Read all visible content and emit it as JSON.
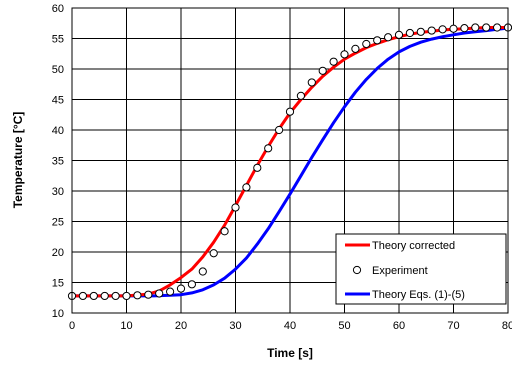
{
  "chart_data": {
    "type": "line",
    "xlabel": "Time [s]",
    "ylabel": "Temperature [°C]",
    "xlim": [
      0,
      80
    ],
    "ylim": [
      10,
      60
    ],
    "x_ticks": [
      0,
      10,
      20,
      30,
      40,
      50,
      60,
      70,
      80
    ],
    "y_ticks": [
      10,
      15,
      20,
      25,
      30,
      35,
      40,
      45,
      50,
      55,
      60
    ],
    "grid": true,
    "legend_position": "bottom-right",
    "series": [
      {
        "name": "Theory corrected",
        "kind": "line",
        "color": "#ff0000",
        "x": [
          0,
          10,
          14,
          16,
          18,
          20,
          22,
          24,
          26,
          28,
          30,
          32,
          34,
          36,
          38,
          40,
          42,
          44,
          46,
          48,
          50,
          52,
          54,
          56,
          58,
          60,
          62,
          64,
          66,
          68,
          70,
          72,
          74,
          76,
          78,
          80
        ],
        "y": [
          12.8,
          12.8,
          13.1,
          13.6,
          14.6,
          15.8,
          17.2,
          19.2,
          21.6,
          24.4,
          27.6,
          30.9,
          34.2,
          37.3,
          40.2,
          42.8,
          45.0,
          47.0,
          48.8,
          50.3,
          51.6,
          52.6,
          53.5,
          54.2,
          54.8,
          55.3,
          55.7,
          56.0,
          56.2,
          56.4,
          56.5,
          56.6,
          56.7,
          56.8,
          56.8,
          56.8
        ]
      },
      {
        "name": "Experiment",
        "kind": "scatter",
        "color": "#000000",
        "x": [
          0,
          2,
          4,
          6,
          8,
          10,
          12,
          14,
          16,
          18,
          20,
          22,
          24,
          26,
          28,
          30,
          32,
          34,
          36,
          38,
          40,
          42,
          44,
          46,
          48,
          50,
          52,
          54,
          56,
          58,
          60,
          62,
          64,
          66,
          68,
          70,
          72,
          74,
          76,
          78,
          80
        ],
        "y": [
          12.8,
          12.8,
          12.8,
          12.8,
          12.8,
          12.8,
          12.9,
          13.0,
          13.2,
          13.5,
          14.0,
          14.7,
          16.8,
          19.8,
          23.4,
          27.3,
          30.6,
          33.8,
          37.0,
          40.0,
          43.0,
          45.6,
          47.8,
          49.7,
          51.2,
          52.4,
          53.3,
          54.1,
          54.7,
          55.2,
          55.6,
          55.9,
          56.1,
          56.3,
          56.5,
          56.6,
          56.7,
          56.8,
          56.8,
          56.8,
          56.8
        ]
      },
      {
        "name": "Theory Eqs. (1)-(5)",
        "kind": "line",
        "color": "#0000ff",
        "x": [
          0,
          10,
          15,
          18,
          20,
          22,
          24,
          26,
          28,
          30,
          32,
          34,
          36,
          38,
          40,
          42,
          44,
          46,
          48,
          50,
          52,
          54,
          56,
          58,
          60,
          62,
          64,
          66,
          68,
          70,
          72,
          74,
          76,
          78,
          80
        ],
        "y": [
          12.8,
          12.8,
          12.8,
          12.9,
          13.0,
          13.3,
          13.8,
          14.6,
          15.7,
          17.2,
          19.0,
          21.3,
          23.8,
          26.6,
          29.5,
          32.5,
          35.5,
          38.4,
          41.2,
          43.8,
          46.2,
          48.3,
          50.1,
          51.6,
          52.8,
          53.7,
          54.4,
          54.9,
          55.3,
          55.6,
          55.9,
          56.1,
          56.3,
          56.5,
          56.7
        ]
      }
    ]
  }
}
